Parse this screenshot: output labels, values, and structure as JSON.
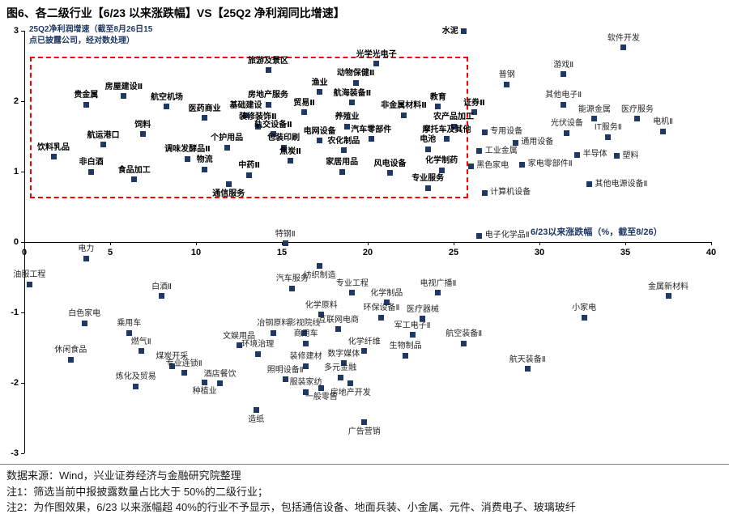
{
  "title": "图6、各二级行业【6/23 以来涨跌幅】VS【25Q2 净利润同比增速】",
  "chart_data": {
    "type": "scatter",
    "title": "各二级行业 6/23以来涨跌幅 VS 25Q2净利润同比增速",
    "xlabel": "6/23以来涨跌幅（%，截至8/26）",
    "ylabel_lines": [
      "25Q2净利润增速（截至8月26日15",
      "点已披露公司，经对数处理）"
    ],
    "xlim": [
      0,
      40
    ],
    "ylim": [
      -3,
      3
    ],
    "x_ticks": [
      0,
      5,
      10,
      15,
      20,
      25,
      30,
      35,
      40
    ],
    "y_ticks": [
      3,
      2,
      1,
      0,
      -1,
      -2,
      -3
    ],
    "grid": false,
    "colors": {
      "marker": "#1F3864",
      "box": "#FF0000",
      "navy": "#1F3864"
    },
    "highlight_box": {
      "x0": 0.35,
      "x1": 25.85,
      "y0": 0.62,
      "y1": 2.63
    },
    "points": [
      {
        "n": "水泥",
        "x": 25.6,
        "y": 2.99,
        "b": 1,
        "p": "l"
      },
      {
        "n": "软件开发",
        "x": 34.9,
        "y": 2.76,
        "b": 0
      },
      {
        "n": "光学光电子",
        "x": 20.5,
        "y": 2.53,
        "b": 1
      },
      {
        "n": "旅游及景区",
        "x": 14.2,
        "y": 2.44,
        "b": 1
      },
      {
        "n": "游戏Ⅱ",
        "x": 31.4,
        "y": 2.38,
        "b": 0
      },
      {
        "n": "动物保健Ⅱ",
        "x": 19.3,
        "y": 2.26,
        "b": 1
      },
      {
        "n": "普钢",
        "x": 28.1,
        "y": 2.24,
        "b": 0
      },
      {
        "n": "渔业",
        "x": 17.2,
        "y": 2.13,
        "b": 1
      },
      {
        "n": "房屋建设Ⅱ",
        "x": 5.8,
        "y": 2.07,
        "b": 1
      },
      {
        "n": "航海装备Ⅱ",
        "x": 19.1,
        "y": 1.98,
        "b": 1
      },
      {
        "n": "贵金属",
        "x": 3.6,
        "y": 1.95,
        "b": 1
      },
      {
        "n": "房地产服务",
        "x": 14.2,
        "y": 1.95,
        "b": 1
      },
      {
        "n": "其他电子Ⅱ",
        "x": 31.4,
        "y": 1.95,
        "b": 0
      },
      {
        "n": "航空机场",
        "x": 8.3,
        "y": 1.92,
        "b": 1
      },
      {
        "n": "教育",
        "x": 24.1,
        "y": 1.92,
        "b": 1
      },
      {
        "n": "贸易Ⅱ",
        "x": 16.3,
        "y": 1.84,
        "b": 1
      },
      {
        "n": "证券Ⅱ",
        "x": 26.2,
        "y": 1.84,
        "b": 1
      },
      {
        "n": "基础建设",
        "x": 12.9,
        "y": 1.8,
        "b": 1
      },
      {
        "n": "非金属材料Ⅱ",
        "x": 22.1,
        "y": 1.8,
        "b": 1
      },
      {
        "n": "医药商业",
        "x": 10.5,
        "y": 1.76,
        "b": 1
      },
      {
        "n": "能源金属",
        "x": 33.2,
        "y": 1.75,
        "b": 0
      },
      {
        "n": "医疗服务",
        "x": 35.7,
        "y": 1.75,
        "b": 0
      },
      {
        "n": "装修装饰Ⅱ",
        "x": 13.6,
        "y": 1.64,
        "b": 1
      },
      {
        "n": "养殖业",
        "x": 18.8,
        "y": 1.64,
        "b": 1
      },
      {
        "n": "农产品加工",
        "x": 25.0,
        "y": 1.64,
        "b": 1
      },
      {
        "n": "电机Ⅱ",
        "x": 37.2,
        "y": 1.57,
        "b": 0
      },
      {
        "n": "专用设备",
        "x": 26.8,
        "y": 1.56,
        "b": 0,
        "p": "r"
      },
      {
        "n": "光伏设备",
        "x": 31.6,
        "y": 1.55,
        "b": 0
      },
      {
        "n": "饲料",
        "x": 6.9,
        "y": 1.53,
        "b": 1
      },
      {
        "n": "轨交设备Ⅱ",
        "x": 14.5,
        "y": 1.53,
        "b": 1
      },
      {
        "n": "IT服务Ⅱ",
        "x": 34.0,
        "y": 1.49,
        "b": 0
      },
      {
        "n": "汽车零部件",
        "x": 20.2,
        "y": 1.46,
        "b": 1
      },
      {
        "n": "摩托车及其他",
        "x": 24.6,
        "y": 1.46,
        "b": 1
      },
      {
        "n": "电网设备",
        "x": 17.2,
        "y": 1.44,
        "b": 1
      },
      {
        "n": "通用设备",
        "x": 28.6,
        "y": 1.41,
        "b": 0,
        "p": "r"
      },
      {
        "n": "航运港口",
        "x": 4.6,
        "y": 1.38,
        "b": 1
      },
      {
        "n": "个护用品",
        "x": 11.8,
        "y": 1.34,
        "b": 1
      },
      {
        "n": "包装印刷",
        "x": 15.1,
        "y": 1.34,
        "b": 1
      },
      {
        "n": "电池",
        "x": 23.5,
        "y": 1.32,
        "b": 1
      },
      {
        "n": "农化制品",
        "x": 18.6,
        "y": 1.3,
        "b": 1
      },
      {
        "n": "工业金属",
        "x": 26.5,
        "y": 1.29,
        "b": 0,
        "p": "r"
      },
      {
        "n": "半导体",
        "x": 32.2,
        "y": 1.24,
        "b": 0,
        "p": "r"
      },
      {
        "n": "塑料",
        "x": 34.5,
        "y": 1.22,
        "b": 0,
        "p": "r"
      },
      {
        "n": "饮料乳品",
        "x": 1.7,
        "y": 1.21,
        "b": 1
      },
      {
        "n": "调味发酵品Ⅱ",
        "x": 9.5,
        "y": 1.18,
        "b": 1
      },
      {
        "n": "焦炭Ⅱ",
        "x": 15.5,
        "y": 1.15,
        "b": 1
      },
      {
        "n": "家电零部件Ⅱ",
        "x": 29.0,
        "y": 1.1,
        "b": 0,
        "p": "r"
      },
      {
        "n": "黑色家电",
        "x": 26.0,
        "y": 1.08,
        "b": 0,
        "p": "r"
      },
      {
        "n": "物流",
        "x": 10.5,
        "y": 1.03,
        "b": 1
      },
      {
        "n": "化学制药",
        "x": 24.3,
        "y": 1.02,
        "b": 1
      },
      {
        "n": "非白酒",
        "x": 3.9,
        "y": 1.0,
        "b": 1
      },
      {
        "n": "家居用品",
        "x": 18.5,
        "y": 1.0,
        "b": 1
      },
      {
        "n": "风电设备",
        "x": 21.3,
        "y": 0.98,
        "b": 1
      },
      {
        "n": "中药Ⅱ",
        "x": 13.1,
        "y": 0.95,
        "b": 1
      },
      {
        "n": "食品加工",
        "x": 6.4,
        "y": 0.89,
        "b": 1
      },
      {
        "n": "其他电源设备Ⅱ",
        "x": 32.9,
        "y": 0.82,
        "b": 0,
        "p": "r"
      },
      {
        "n": "通信服务",
        "x": 11.9,
        "y": 0.82,
        "b": 1,
        "p": "b"
      },
      {
        "n": "专业服务",
        "x": 23.5,
        "y": 0.77,
        "b": 1
      },
      {
        "n": "计算机设备",
        "x": 26.8,
        "y": 0.7,
        "b": 0,
        "p": "r"
      },
      {
        "n": "电子化学品Ⅱ",
        "x": 26.5,
        "y": 0.09,
        "b": 0,
        "p": "r"
      },
      {
        "n": "特钢Ⅱ",
        "x": 15.2,
        "y": -0.02,
        "b": 0
      },
      {
        "n": "电力",
        "x": 3.6,
        "y": -0.23,
        "b": 0
      },
      {
        "n": "纺织制造",
        "x": 17.2,
        "y": -0.34,
        "b": 0,
        "p": "b"
      },
      {
        "n": "油服工程",
        "x": 0.3,
        "y": -0.6,
        "b": 0
      },
      {
        "n": "汽车服务",
        "x": 15.6,
        "y": -0.66,
        "b": 0
      },
      {
        "n": "专业工程",
        "x": 19.1,
        "y": -0.72,
        "b": 0
      },
      {
        "n": "电视广播Ⅱ",
        "x": 24.1,
        "y": -0.72,
        "b": 0
      },
      {
        "n": "金属新材料",
        "x": 37.5,
        "y": -0.77,
        "b": 0
      },
      {
        "n": "白酒Ⅱ",
        "x": 8.0,
        "y": -0.77,
        "b": 0
      },
      {
        "n": "化学制品",
        "x": 21.1,
        "y": -0.86,
        "b": 0
      },
      {
        "n": "化学原料",
        "x": 17.3,
        "y": -1.03,
        "b": 0
      },
      {
        "n": "环保设备Ⅱ",
        "x": 20.8,
        "y": -1.07,
        "b": 0
      },
      {
        "n": "小家电",
        "x": 32.6,
        "y": -1.07,
        "b": 0
      },
      {
        "n": "医疗器械",
        "x": 23.2,
        "y": -1.09,
        "b": 0
      },
      {
        "n": "白色家电",
        "x": 3.5,
        "y": -1.15,
        "b": 0
      },
      {
        "n": "互联网电商",
        "x": 18.3,
        "y": -1.24,
        "b": 0
      },
      {
        "n": "乘用车",
        "x": 6.1,
        "y": -1.29,
        "b": 0
      },
      {
        "n": "冶钢原料",
        "x": 14.5,
        "y": -1.29,
        "b": 0
      },
      {
        "n": "影视院线",
        "x": 16.3,
        "y": -1.29,
        "b": 0
      },
      {
        "n": "军工电子Ⅱ",
        "x": 22.6,
        "y": -1.32,
        "b": 0
      },
      {
        "n": "商用车",
        "x": 16.4,
        "y": -1.44,
        "b": 0
      },
      {
        "n": "航空装备Ⅱ",
        "x": 25.6,
        "y": -1.44,
        "b": 0
      },
      {
        "n": "文娱用品",
        "x": 12.5,
        "y": -1.47,
        "b": 0
      },
      {
        "n": "燃气Ⅱ",
        "x": 6.8,
        "y": -1.55,
        "b": 0
      },
      {
        "n": "化学纤维",
        "x": 19.8,
        "y": -1.55,
        "b": 0
      },
      {
        "n": "环境治理",
        "x": 13.6,
        "y": -1.59,
        "b": 0
      },
      {
        "n": "生物制品",
        "x": 22.2,
        "y": -1.61,
        "b": 0
      },
      {
        "n": "休闲食品",
        "x": 2.7,
        "y": -1.67,
        "b": 0
      },
      {
        "n": "数字媒体",
        "x": 18.6,
        "y": -1.72,
        "b": 0
      },
      {
        "n": "煤炭开采",
        "x": 8.6,
        "y": -1.76,
        "b": 0
      },
      {
        "n": "装修建材",
        "x": 16.4,
        "y": -1.76,
        "b": 0
      },
      {
        "n": "航天装备Ⅱ",
        "x": 29.3,
        "y": -1.8,
        "b": 0
      },
      {
        "n": "专业连锁Ⅱ",
        "x": 9.3,
        "y": -1.86,
        "b": 0
      },
      {
        "n": "多元金融",
        "x": 18.4,
        "y": -1.92,
        "b": 0
      },
      {
        "n": "照明设备Ⅱ",
        "x": 15.2,
        "y": -1.95,
        "b": 0
      },
      {
        "n": "种植业",
        "x": 10.5,
        "y": -1.99,
        "b": 0,
        "p": "b"
      },
      {
        "n": "酒店餐饮",
        "x": 11.4,
        "y": -2.01,
        "b": 0
      },
      {
        "n": "房地产开发",
        "x": 19.0,
        "y": -2.01,
        "b": 0,
        "p": "b"
      },
      {
        "n": "炼化及贸易",
        "x": 6.5,
        "y": -2.05,
        "b": 0
      },
      {
        "n": "一般零售",
        "x": 17.3,
        "y": -2.07,
        "b": 0,
        "p": "b"
      },
      {
        "n": "服装家纺",
        "x": 16.4,
        "y": -2.13,
        "b": 0
      },
      {
        "n": "造纸",
        "x": 13.5,
        "y": -2.39,
        "b": 0,
        "p": "b"
      },
      {
        "n": "广告营销",
        "x": 19.8,
        "y": -2.56,
        "b": 0,
        "p": "b"
      }
    ]
  },
  "footer": {
    "source": "数据来源：Wind，兴业证券经济与金融研究院整理",
    "note1": "注1：筛选当前中报披露数量占比大于 50%的二级行业；",
    "note2": "注2：为作图效果，6/23 以来涨幅超 40%的行业不予显示，包括通信设备、地面兵装、小金属、元件、消费电子、玻璃玻纤"
  }
}
